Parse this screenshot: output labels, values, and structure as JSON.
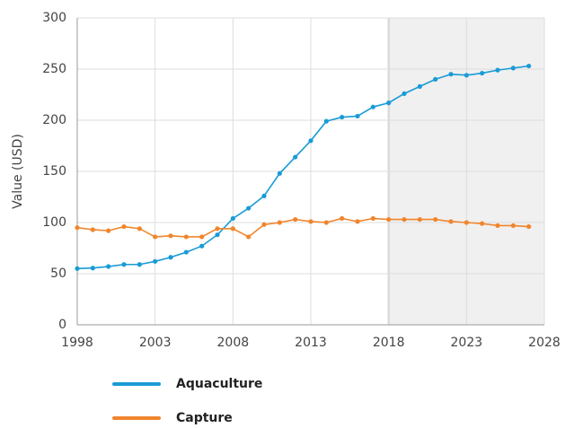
{
  "chart_data": {
    "type": "line",
    "y_label": "Value (USD)",
    "x": [
      1998,
      1999,
      2000,
      2001,
      2002,
      2003,
      2004,
      2005,
      2006,
      2007,
      2008,
      2009,
      2010,
      2011,
      2012,
      2013,
      2014,
      2015,
      2016,
      2017,
      2018,
      2019,
      2020,
      2021,
      2022,
      2023,
      2024,
      2025,
      2026,
      2027
    ],
    "series": [
      {
        "name": "Aquaculture",
        "color": "#1a9bd7",
        "values": [
          55,
          55.5,
          57,
          59,
          59,
          62,
          66,
          71,
          77,
          88,
          104,
          114,
          126,
          148,
          164,
          180,
          199,
          203,
          204,
          213,
          217,
          226,
          233,
          240,
          245,
          244,
          246,
          249,
          251,
          253
        ]
      },
      {
        "name": "Capture",
        "color": "#f0852d",
        "values": [
          95,
          93,
          92,
          96,
          94,
          86,
          87,
          86,
          86,
          94,
          94,
          86,
          98,
          100,
          103,
          101,
          100,
          104,
          101,
          104,
          103,
          103,
          103,
          103,
          101,
          100,
          99,
          97,
          97,
          96
        ]
      }
    ],
    "xlim": [
      1998,
      2028
    ],
    "xticks": [
      1998,
      2003,
      2008,
      2013,
      2018,
      2023,
      2028
    ],
    "ylim": [
      0,
      300
    ],
    "yticks": [
      0,
      50,
      100,
      150,
      200,
      250,
      300
    ],
    "shaded_xrange": [
      2018,
      2028
    ],
    "grid": true
  }
}
